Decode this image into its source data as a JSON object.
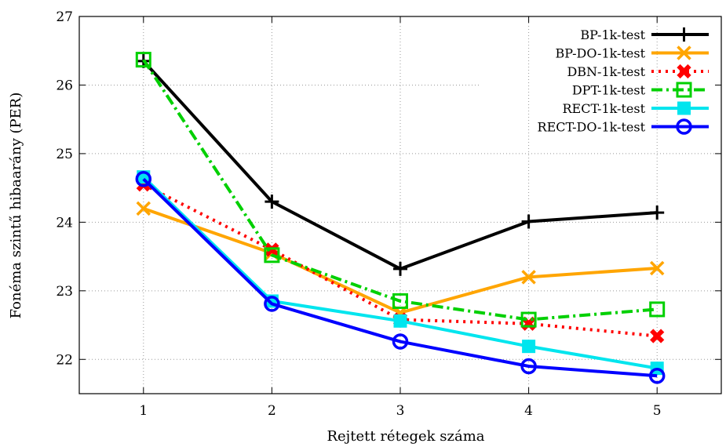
{
  "chart_data": {
    "type": "line",
    "title": "",
    "xlabel": "Rejtett rétegek száma",
    "ylabel": "Fonéma szintű hibaarány (PER)",
    "x": [
      1,
      2,
      3,
      4,
      5
    ],
    "xlim": [
      0.5,
      5.5
    ],
    "ylim": [
      21.5,
      27
    ],
    "xticks": [
      "1",
      "2",
      "3",
      "4",
      "5"
    ],
    "yticks": [
      "22",
      "23",
      "24",
      "25",
      "26",
      "27"
    ],
    "grid": true,
    "legend_position": "top-right",
    "series": [
      {
        "name": "BP-1k-test",
        "color": "#000000",
        "dash": "",
        "marker": "plus",
        "values": [
          26.35,
          24.3,
          23.32,
          24.01,
          24.14
        ]
      },
      {
        "name": "BP-DO-1k-test",
        "color": "#ffa500",
        "dash": "",
        "marker": "x",
        "values": [
          24.2,
          23.55,
          22.68,
          23.2,
          23.33
        ]
      },
      {
        "name": "DBN-1k-test",
        "color": "#ff0000",
        "dash": "3,6",
        "marker": "xfilled",
        "values": [
          24.55,
          23.6,
          22.58,
          22.52,
          22.34
        ]
      },
      {
        "name": "DPT-1k-test",
        "color": "#00d000",
        "dash": "14,5,3,5",
        "marker": "square-open",
        "values": [
          26.37,
          23.52,
          22.85,
          22.58,
          22.73
        ]
      },
      {
        "name": "RECT-1k-test",
        "color": "#00e5ee",
        "dash": "",
        "marker": "square-filled",
        "values": [
          24.66,
          22.85,
          22.56,
          22.19,
          21.87
        ]
      },
      {
        "name": "RECT-DO-1k-test",
        "color": "#0000ff",
        "dash": "",
        "marker": "circle-open",
        "values": [
          24.63,
          22.81,
          22.26,
          21.9,
          21.76
        ]
      }
    ]
  }
}
